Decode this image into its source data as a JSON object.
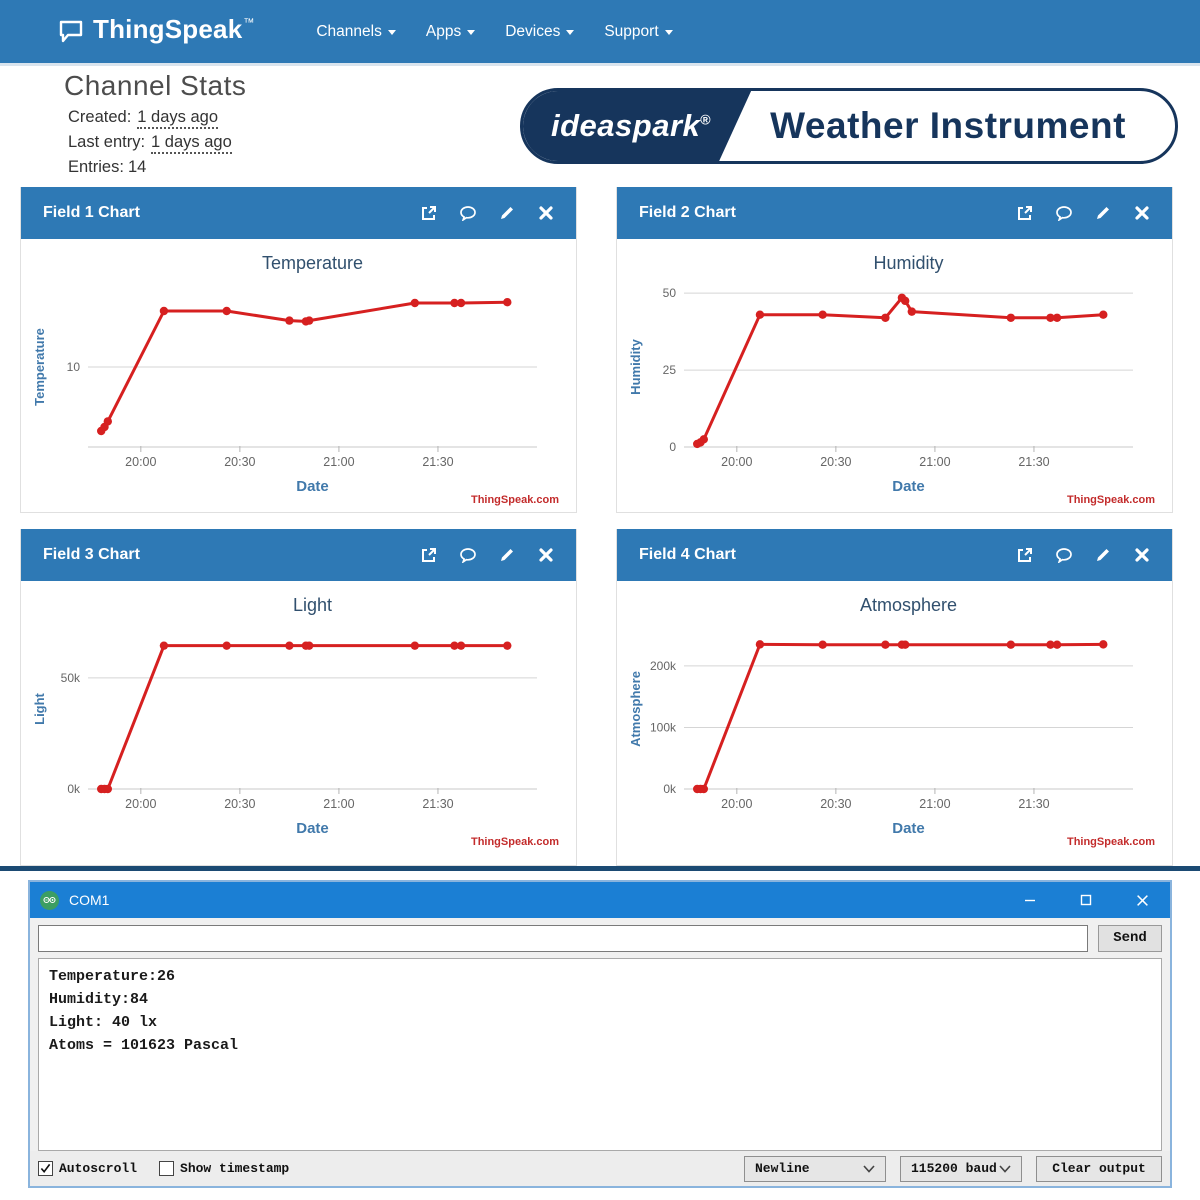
{
  "nav": {
    "brand": "ThingSpeak",
    "brand_tm": "™",
    "menus": [
      {
        "label": "Channels"
      },
      {
        "label": "Apps"
      },
      {
        "label": "Devices"
      },
      {
        "label": "Support"
      }
    ]
  },
  "stats": {
    "title": "Channel Stats",
    "created_label": "Created:",
    "created_value": "1 days ago",
    "last_entry_label": "Last entry:",
    "last_entry_value": "1 days ago",
    "entries_label": "Entries:",
    "entries_value": "14"
  },
  "banner": {
    "brand": "ideaspark",
    "registered": "®",
    "title": "Weather Instrument"
  },
  "chart_panels": [
    {
      "title": "Field 1 Chart"
    },
    {
      "title": "Field 2 Chart"
    },
    {
      "title": "Field 3 Chart"
    },
    {
      "title": "Field 4 Chart"
    }
  ],
  "colors": {
    "navbar_blue": "#2e79b5",
    "line_red": "#d62020",
    "banner_navy": "#16355c",
    "serial_titlebar_blue": "#1b7fd4",
    "arduino_green": "#3c9e63",
    "watermark_red": "#c32c2c"
  },
  "chart_data": [
    {
      "type": "line",
      "title": "Temperature",
      "ylabel": "Temperature",
      "xlabel": "Date",
      "watermark": "ThingSpeak.com",
      "x": [
        "19:48",
        "19:49",
        "19:50",
        "20:07",
        "20:26",
        "20:45",
        "20:50",
        "20:51",
        "21:23",
        "21:35",
        "21:37",
        "21:51"
      ],
      "values": [
        2,
        2.5,
        3.2,
        17,
        17,
        15.8,
        15.7,
        15.8,
        18,
        18,
        18,
        18.1
      ],
      "ylim": [
        0,
        20
      ],
      "yticks": [
        {
          "v": 10,
          "label": "10"
        }
      ],
      "xlim": [
        "19:44",
        "22:00"
      ],
      "xticks": [
        "20:00",
        "20:30",
        "21:00",
        "21:30"
      ],
      "grid": true,
      "color": "#d62020"
    },
    {
      "type": "line",
      "title": "Humidity",
      "ylabel": "Humidity",
      "xlabel": "Date",
      "watermark": "ThingSpeak.com",
      "x": [
        "19:48",
        "19:49",
        "19:50",
        "20:07",
        "20:26",
        "20:45",
        "20:50",
        "20:51",
        "20:53",
        "21:23",
        "21:35",
        "21:37",
        "21:51"
      ],
      "values": [
        1,
        1.5,
        2.5,
        43,
        43,
        42,
        48.5,
        47.5,
        44,
        42,
        42,
        42,
        43
      ],
      "ylim": [
        0,
        52
      ],
      "yticks": [
        {
          "v": 0,
          "label": "0"
        },
        {
          "v": 25,
          "label": "25"
        },
        {
          "v": 50,
          "label": "50"
        }
      ],
      "xlim": [
        "19:44",
        "22:00"
      ],
      "xticks": [
        "20:00",
        "20:30",
        "21:00",
        "21:30"
      ],
      "grid": true,
      "color": "#d62020"
    },
    {
      "type": "line",
      "title": "Light",
      "ylabel": "Light",
      "xlabel": "Date",
      "watermark": "ThingSpeak.com",
      "x": [
        "19:48",
        "19:49",
        "19:50",
        "20:07",
        "20:26",
        "20:45",
        "20:50",
        "20:51",
        "21:23",
        "21:35",
        "21:37",
        "21:51"
      ],
      "values": [
        0,
        0,
        0,
        64500,
        64500,
        64500,
        64500,
        64500,
        64500,
        64500,
        64500,
        64500
      ],
      "ylim": [
        0,
        72000
      ],
      "yticks": [
        {
          "v": 0,
          "label": "0k"
        },
        {
          "v": 50000,
          "label": "50k"
        }
      ],
      "xlim": [
        "19:44",
        "22:00"
      ],
      "xticks": [
        "20:00",
        "20:30",
        "21:00",
        "21:30"
      ],
      "grid": true,
      "color": "#d62020"
    },
    {
      "type": "line",
      "title": "Atmosphere",
      "ylabel": "Atmosphere",
      "xlabel": "Date",
      "watermark": "ThingSpeak.com",
      "x": [
        "19:48",
        "19:49",
        "19:50",
        "20:07",
        "20:26",
        "20:45",
        "20:50",
        "20:51",
        "21:23",
        "21:35",
        "21:37",
        "21:51"
      ],
      "values": [
        0,
        0,
        0,
        235000,
        234500,
        234500,
        234500,
        234500,
        234500,
        234500,
        234500,
        235000
      ],
      "ylim": [
        0,
        260000
      ],
      "yticks": [
        {
          "v": 0,
          "label": "0k"
        },
        {
          "v": 100000,
          "label": "100k"
        },
        {
          "v": 200000,
          "label": "200k"
        }
      ],
      "xlim": [
        "19:44",
        "22:00"
      ],
      "xticks": [
        "20:00",
        "20:30",
        "21:00",
        "21:30"
      ],
      "grid": true,
      "color": "#d62020"
    }
  ],
  "serial": {
    "window_title": "COM1",
    "send_button": "Send",
    "output": [
      "Temperature:26",
      "Humidity:84",
      "Light: 40 lx",
      "Atoms = 101623 Pascal"
    ],
    "autoscroll_label": "Autoscroll",
    "timestamp_label": "Show timestamp",
    "line_ending": "Newline",
    "baud_rate": "115200 baud",
    "clear_button": "Clear output"
  }
}
